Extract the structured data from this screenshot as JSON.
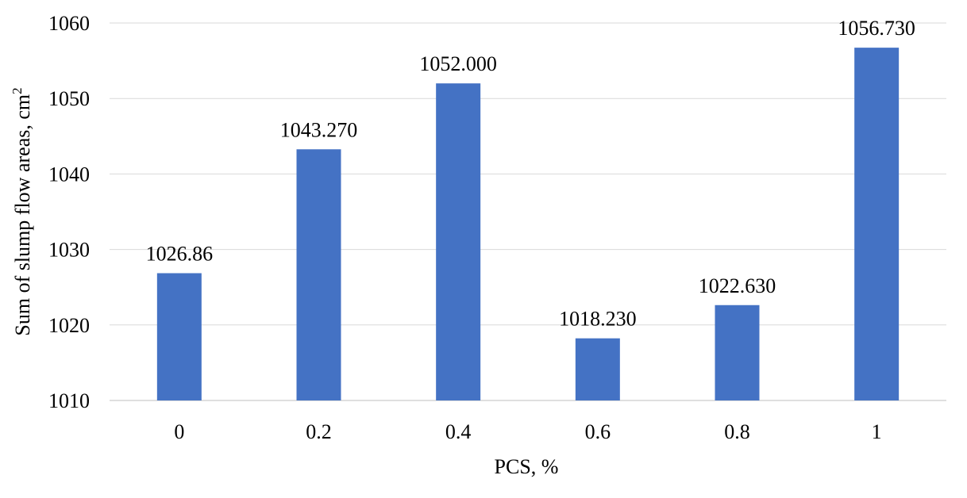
{
  "chart_data": {
    "type": "bar",
    "categories": [
      "0",
      "0.2",
      "0.4",
      "0.6",
      "0.8",
      "1"
    ],
    "values": [
      1026.86,
      1043.27,
      1052.0,
      1018.23,
      1022.63,
      1056.73
    ],
    "data_labels": [
      "1026.86",
      "1043.270",
      "1052.000",
      "1018.230",
      "1022.630",
      "1056.730"
    ],
    "title": "",
    "xlabel": "PCS, %",
    "ylabel_main": "Sum of slump flow areas, cm",
    "ylabel_superscript": "2",
    "ylim": [
      1010,
      1060
    ],
    "yticks": [
      "1010",
      "1020",
      "1030",
      "1040",
      "1050",
      "1060"
    ],
    "ytick_values": [
      1010,
      1020,
      1030,
      1040,
      1050,
      1060
    ],
    "grid": true,
    "legend": "none",
    "bar_color": "#4472c4"
  }
}
